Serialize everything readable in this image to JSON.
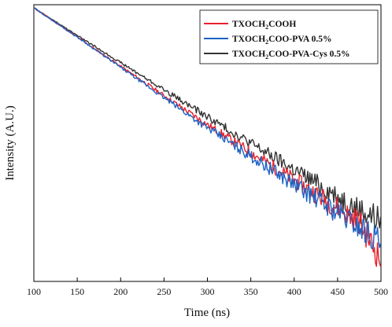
{
  "chart_data": {
    "type": "line",
    "xlabel": "Time (ns)",
    "ylabel": "Intensity (A.U.)",
    "xlim": [
      100,
      500
    ],
    "xticks": [
      "100",
      "150",
      "200",
      "250",
      "300",
      "350",
      "400",
      "450",
      "500"
    ],
    "ylim": [
      0,
      1
    ],
    "yscale": "log",
    "legend_position": "top-right",
    "grid": false,
    "series": [
      {
        "name": "TXOCH2COOH",
        "legend_parts": [
          "TXOCH",
          "2",
          "COOH"
        ],
        "color": "#e8202a",
        "x": [
          100,
          125,
          150,
          175,
          200,
          225,
          250,
          275,
          300,
          325,
          350,
          375,
          400,
          425,
          450,
          475,
          500
        ],
        "y": [
          1.0,
          0.945,
          0.89,
          0.835,
          0.78,
          0.725,
          0.67,
          0.615,
          0.56,
          0.508,
          0.456,
          0.404,
          0.352,
          0.3,
          0.248,
          0.196,
          0.05
        ]
      },
      {
        "name": "TXOCH2COO-PVA 0.5%",
        "legend_parts": [
          "TXOCH",
          "2",
          "COO-PVA 0.5%"
        ],
        "color": "#1c62c4",
        "x": [
          100,
          125,
          150,
          175,
          200,
          225,
          250,
          275,
          300,
          325,
          350,
          375,
          400,
          425,
          450,
          475,
          500
        ],
        "y": [
          1.0,
          0.945,
          0.89,
          0.833,
          0.776,
          0.719,
          0.662,
          0.605,
          0.548,
          0.495,
          0.442,
          0.389,
          0.336,
          0.283,
          0.23,
          0.177,
          0.12
        ]
      },
      {
        "name": "TXOCH2COO-PVA-Cys 0.5%",
        "legend_parts": [
          "TXOCH",
          "2",
          "COO-PVA-Cys 0.5%"
        ],
        "color": "#333333",
        "x": [
          100,
          125,
          150,
          175,
          200,
          225,
          250,
          275,
          300,
          325,
          350,
          375,
          400,
          425,
          450,
          475,
          500
        ],
        "y": [
          1.0,
          0.948,
          0.896,
          0.845,
          0.794,
          0.743,
          0.692,
          0.641,
          0.59,
          0.54,
          0.49,
          0.44,
          0.39,
          0.34,
          0.29,
          0.24,
          0.2
        ]
      }
    ]
  }
}
